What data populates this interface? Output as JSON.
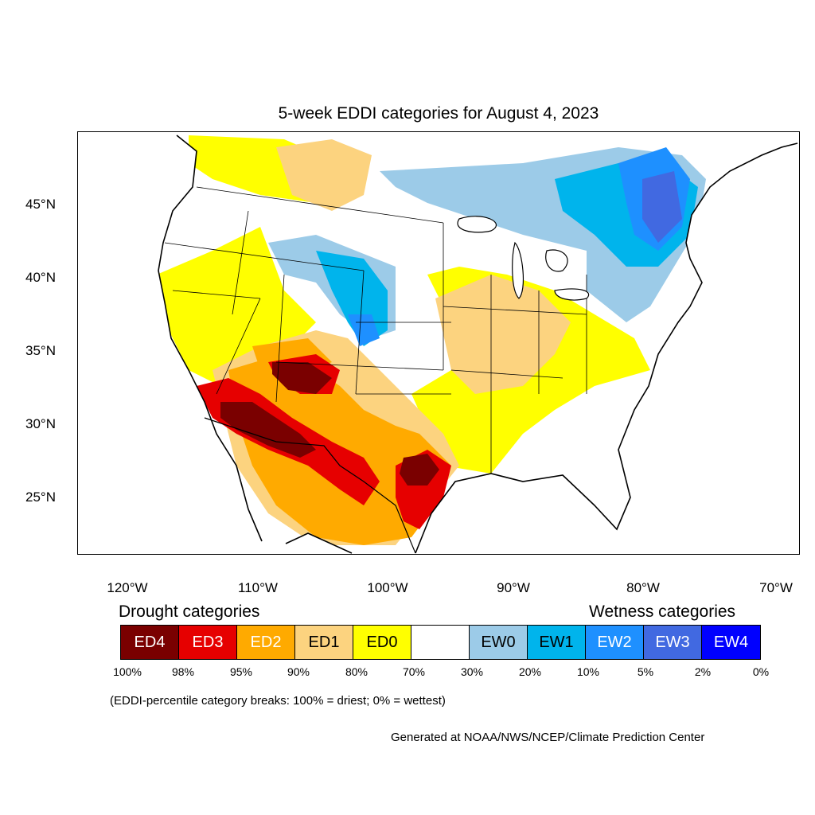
{
  "title": "5-week EDDI categories for August 4, 2023",
  "axes": {
    "lat_ticks": [
      "45°N",
      "40°N",
      "35°N",
      "30°N",
      "25°N"
    ],
    "lon_ticks": [
      "120°W",
      "110°W",
      "100°W",
      "90°W",
      "80°W",
      "70°W"
    ]
  },
  "legend": {
    "drought_title": "Drought categories",
    "wetness_title": "Wetness categories",
    "categories": [
      {
        "label": "ED4",
        "color": "#7a0000",
        "text_color": "#ffffff"
      },
      {
        "label": "ED3",
        "color": "#e60000",
        "text_color": "#ffffff"
      },
      {
        "label": "ED2",
        "color": "#ffaa00",
        "text_color": "#ffffff"
      },
      {
        "label": "ED1",
        "color": "#fcd37f",
        "text_color": "#000000"
      },
      {
        "label": "ED0",
        "color": "#ffff00",
        "text_color": "#000000"
      },
      {
        "label": "",
        "color": "#ffffff",
        "text_color": "#000000"
      },
      {
        "label": "EW0",
        "color": "#9ccbe8",
        "text_color": "#000000"
      },
      {
        "label": "EW1",
        "color": "#00b4ec",
        "text_color": "#000000"
      },
      {
        "label": "EW2",
        "color": "#1e90ff",
        "text_color": "#ffffff"
      },
      {
        "label": "EW3",
        "color": "#4169e1",
        "text_color": "#ffffff"
      },
      {
        "label": "EW4",
        "color": "#0000ff",
        "text_color": "#ffffff"
      }
    ],
    "percent_breaks": [
      "100%",
      "98%",
      "95%",
      "90%",
      "80%",
      "70%",
      "30%",
      "20%",
      "10%",
      "5%",
      "2%",
      "0%"
    ]
  },
  "footnote": "(EDDI-percentile category breaks: 100% = driest; 0% = wettest)",
  "credit": "Generated at NOAA/NWS/NCEP/Climate Prediction Center"
}
